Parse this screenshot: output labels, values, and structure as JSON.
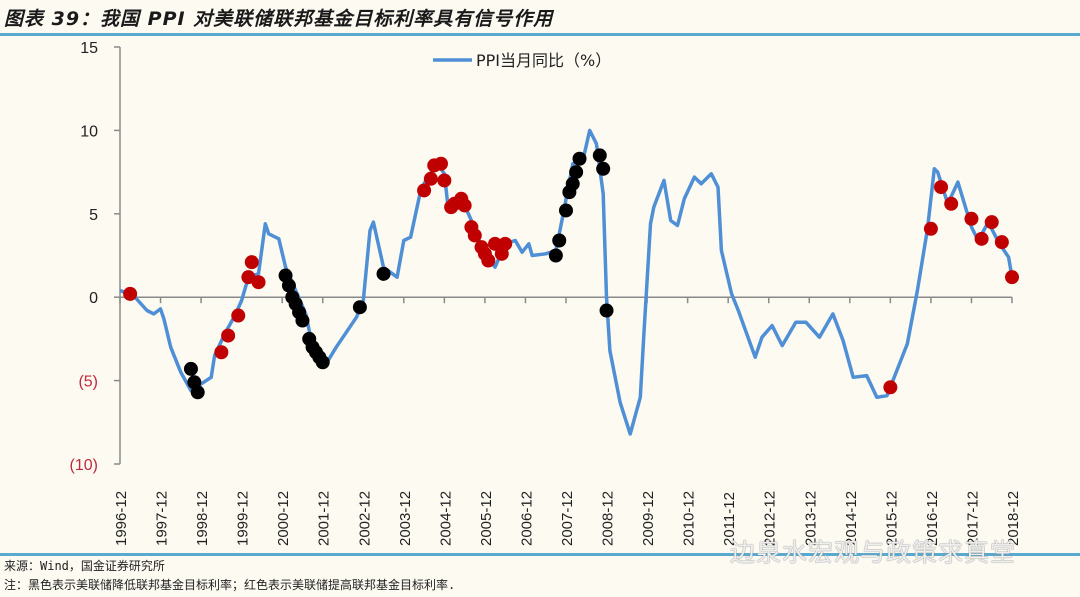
{
  "title": "图表 39：我国 PPI 对美联储联邦基金目标利率具有信号作用",
  "source": "来源：Wind，国金证券研究所",
  "note": "注：黑色表示美联储降低联邦基金目标利率；红色表示美联储提高联邦基金目标利率.",
  "watermark": "边泉水宏观与政策求真堂",
  "colors": {
    "line": "#4f8fd6",
    "hike": "#c00000",
    "cut": "#000000",
    "negative_label": "#c0283c",
    "rule": "#5aa9cf"
  },
  "chart_data": {
    "type": "line",
    "title": "",
    "xlabel": "",
    "ylabel": "",
    "ylim": [
      -10,
      15
    ],
    "yticks": [
      15,
      10,
      5,
      0,
      -5,
      -10
    ],
    "ytick_labels": [
      "15",
      "10",
      "5",
      "0",
      "(5)",
      "(10)"
    ],
    "xlim": [
      "1996-12",
      "2018-12"
    ],
    "xtick_labels": [
      "1996-12",
      "1997-12",
      "1998-12",
      "1999-12",
      "2000-12",
      "2001-12",
      "2002-12",
      "2003-12",
      "2004-12",
      "2005-12",
      "2006-12",
      "2007-12",
      "2008-12",
      "2009-12",
      "2010-12",
      "2011-12",
      "2012-12",
      "2013-12",
      "2014-12",
      "2015-12",
      "2016-12",
      "2017-12",
      "2018-12"
    ],
    "grid": false,
    "legend_position": "top-center",
    "series": [
      {
        "name": "PPI当月同比（%）",
        "points": [
          [
            "1996-12",
            0.4
          ],
          [
            "1997-04",
            0.1
          ],
          [
            "1997-08",
            -0.8
          ],
          [
            "1997-10",
            -1.0
          ],
          [
            "1997-12",
            -0.7
          ],
          [
            "1998-01",
            -1.3
          ],
          [
            "1998-03",
            -3.0
          ],
          [
            "1998-06",
            -4.5
          ],
          [
            "1998-09",
            -5.6
          ],
          [
            "1998-12",
            -5.2
          ],
          [
            "1999-03",
            -4.8
          ],
          [
            "1999-04",
            -3.5
          ],
          [
            "1999-07",
            -2.2
          ],
          [
            "1999-10",
            -1.1
          ],
          [
            "1999-12",
            -0.2
          ],
          [
            "2000-02",
            1.2
          ],
          [
            "2000-05",
            1.4
          ],
          [
            "2000-07",
            4.4
          ],
          [
            "2000-08",
            3.8
          ],
          [
            "2000-11",
            3.5
          ],
          [
            "2001-01",
            1.8
          ],
          [
            "2001-07",
            -1.0
          ],
          [
            "2001-09",
            -3.0
          ],
          [
            "2002-01",
            -4.0
          ],
          [
            "2002-04",
            -3.0
          ],
          [
            "2002-06",
            -2.4
          ],
          [
            "2002-10",
            -1.2
          ],
          [
            "2002-12",
            -0.2
          ],
          [
            "2003-02",
            4.0
          ],
          [
            "2003-03",
            4.5
          ],
          [
            "2003-06",
            1.8
          ],
          [
            "2003-10",
            1.2
          ],
          [
            "2003-12",
            3.4
          ],
          [
            "2004-02",
            3.6
          ],
          [
            "2004-05",
            6.4
          ],
          [
            "2004-07",
            7.2
          ],
          [
            "2004-10",
            8.0
          ],
          [
            "2004-12",
            7.4
          ],
          [
            "2005-01",
            5.6
          ],
          [
            "2005-06",
            5.5
          ],
          [
            "2005-08",
            4.6
          ],
          [
            "2005-11",
            3.0
          ],
          [
            "2006-03",
            1.8
          ],
          [
            "2006-06",
            3.2
          ],
          [
            "2006-09",
            3.4
          ],
          [
            "2006-11",
            2.7
          ],
          [
            "2007-01",
            3.2
          ],
          [
            "2007-02",
            2.5
          ],
          [
            "2007-06",
            2.6
          ],
          [
            "2007-09",
            2.8
          ],
          [
            "2007-11",
            4.8
          ],
          [
            "2008-02",
            8.0
          ],
          [
            "2008-05",
            8.2
          ],
          [
            "2008-07",
            10.0
          ],
          [
            "2008-09",
            9.2
          ],
          [
            "2008-11",
            6.2
          ],
          [
            "2008-12",
            0.0
          ],
          [
            "2009-01",
            -3.2
          ],
          [
            "2009-04",
            -6.3
          ],
          [
            "2009-07",
            -8.2
          ],
          [
            "2009-10",
            -6.0
          ],
          [
            "2009-11",
            -2.4
          ],
          [
            "2010-01",
            4.4
          ],
          [
            "2010-02",
            5.4
          ],
          [
            "2010-05",
            7.0
          ],
          [
            "2010-07",
            4.6
          ],
          [
            "2010-09",
            4.3
          ],
          [
            "2010-11",
            5.9
          ],
          [
            "2011-02",
            7.2
          ],
          [
            "2011-04",
            6.8
          ],
          [
            "2011-07",
            7.4
          ],
          [
            "2011-09",
            6.6
          ],
          [
            "2011-10",
            2.8
          ],
          [
            "2012-01",
            0.2
          ],
          [
            "2012-03",
            -0.8
          ],
          [
            "2012-08",
            -3.6
          ],
          [
            "2012-10",
            -2.4
          ],
          [
            "2013-01",
            -1.7
          ],
          [
            "2013-04",
            -2.9
          ],
          [
            "2013-08",
            -1.5
          ],
          [
            "2013-11",
            -1.5
          ],
          [
            "2014-03",
            -2.4
          ],
          [
            "2014-07",
            -1.0
          ],
          [
            "2014-10",
            -2.6
          ],
          [
            "2015-01",
            -4.8
          ],
          [
            "2015-05",
            -4.7
          ],
          [
            "2015-08",
            -6.0
          ],
          [
            "2015-11",
            -5.9
          ],
          [
            "2016-05",
            -2.8
          ],
          [
            "2016-08",
            0.4
          ],
          [
            "2016-11",
            4.1
          ],
          [
            "2017-01",
            7.7
          ],
          [
            "2017-02",
            7.5
          ],
          [
            "2017-05",
            5.6
          ],
          [
            "2017-08",
            6.9
          ],
          [
            "2017-12",
            4.2
          ],
          [
            "2018-02",
            3.4
          ],
          [
            "2018-05",
            4.5
          ],
          [
            "2018-08",
            3.3
          ],
          [
            "2018-11",
            2.4
          ],
          [
            "2018-12",
            1.2
          ]
        ]
      }
    ],
    "markers": {
      "hike": [
        [
          "1997-03",
          0.2
        ],
        [
          "1999-06",
          -3.3
        ],
        [
          "1999-08",
          -2.3
        ],
        [
          "1999-11",
          -1.1
        ],
        [
          "2000-02",
          1.2
        ],
        [
          "2000-03",
          2.1
        ],
        [
          "2000-05",
          0.9
        ],
        [
          "2004-06",
          6.4
        ],
        [
          "2004-08",
          7.1
        ],
        [
          "2004-09",
          7.9
        ],
        [
          "2004-11",
          8.0
        ],
        [
          "2004-12",
          7.0
        ],
        [
          "2005-02",
          5.4
        ],
        [
          "2005-03",
          5.6
        ],
        [
          "2005-05",
          5.9
        ],
        [
          "2005-06",
          5.5
        ],
        [
          "2005-08",
          4.2
        ],
        [
          "2005-09",
          3.7
        ],
        [
          "2005-11",
          3.0
        ],
        [
          "2005-12",
          2.6
        ],
        [
          "2006-01",
          2.2
        ],
        [
          "2006-03",
          3.2
        ],
        [
          "2006-05",
          2.6
        ],
        [
          "2006-06",
          3.2
        ],
        [
          "2015-12",
          -5.4
        ],
        [
          "2016-12",
          4.1
        ],
        [
          "2017-03",
          6.6
        ],
        [
          "2017-06",
          5.6
        ],
        [
          "2017-12",
          4.7
        ],
        [
          "2018-03",
          3.5
        ],
        [
          "2018-06",
          4.5
        ],
        [
          "2018-09",
          3.3
        ],
        [
          "2018-12",
          1.2
        ]
      ],
      "cut": [
        [
          "1998-09",
          -4.3
        ],
        [
          "1998-10",
          -5.1
        ],
        [
          "1998-11",
          -5.7
        ],
        [
          "2001-01",
          1.3
        ],
        [
          "2001-02",
          0.7
        ],
        [
          "2001-03",
          0.0
        ],
        [
          "2001-04",
          -0.4
        ],
        [
          "2001-05",
          -0.9
        ],
        [
          "2001-06",
          -1.4
        ],
        [
          "2001-08",
          -2.5
        ],
        [
          "2001-09",
          -3.0
        ],
        [
          "2001-10",
          -3.3
        ],
        [
          "2001-11",
          -3.6
        ],
        [
          "2001-12",
          -3.9
        ],
        [
          "2002-11",
          -0.6
        ],
        [
          "2003-06",
          1.4
        ],
        [
          "2007-09",
          2.5
        ],
        [
          "2007-10",
          3.4
        ],
        [
          "2007-12",
          5.2
        ],
        [
          "2008-01",
          6.3
        ],
        [
          "2008-02",
          6.8
        ],
        [
          "2008-03",
          7.5
        ],
        [
          "2008-04",
          8.3
        ],
        [
          "2008-10",
          8.5
        ],
        [
          "2008-11",
          7.7
        ],
        [
          "2008-12",
          -0.8
        ]
      ]
    }
  }
}
